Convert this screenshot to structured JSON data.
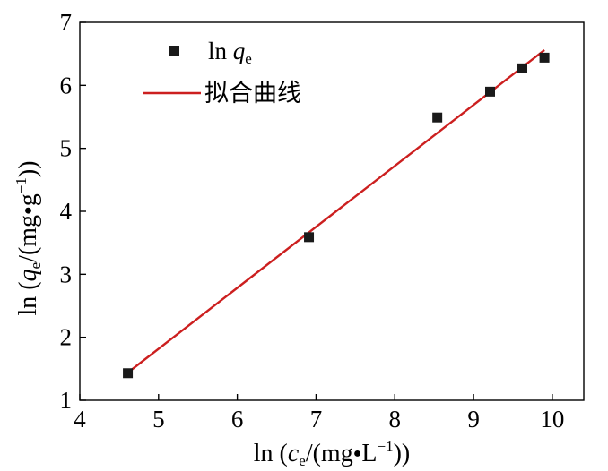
{
  "chart_data": {
    "type": "scatter",
    "xlabel": "ln (c_e/(mg•L^−1))",
    "ylabel": "ln (q_e/(mg•g^−1))",
    "xlim": [
      4,
      10.4
    ],
    "ylim": [
      1,
      7
    ],
    "x_ticks": [
      4,
      5,
      6,
      7,
      8,
      9,
      10
    ],
    "y_ticks": [
      1,
      2,
      3,
      4,
      5,
      6,
      7
    ],
    "grid": false,
    "legend_position": "top-left",
    "series": [
      {
        "name": "ln qe",
        "kind": "scatter",
        "marker": "square",
        "color": "#1a1a1a",
        "points": [
          {
            "x": 4.61,
            "y": 1.43
          },
          {
            "x": 6.91,
            "y": 3.59
          },
          {
            "x": 8.54,
            "y": 5.49
          },
          {
            "x": 9.21,
            "y": 5.9
          },
          {
            "x": 9.62,
            "y": 6.27
          },
          {
            "x": 9.9,
            "y": 6.44
          }
        ]
      },
      {
        "name": "拟合曲线",
        "kind": "line",
        "color": "#cc1f1f",
        "points": [
          {
            "x": 4.6,
            "y": 1.43
          },
          {
            "x": 9.9,
            "y": 6.56
          }
        ]
      }
    ]
  }
}
